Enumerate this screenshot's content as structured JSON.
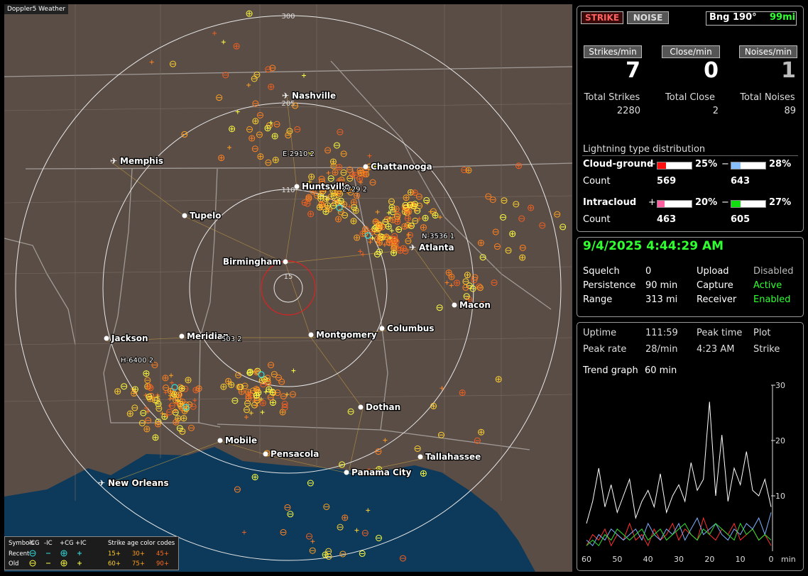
{
  "map": {
    "brand": "Doppler5 Weather",
    "ring_labels": [
      300,
      205,
      110,
      15
    ],
    "cities": [
      "Nashville",
      "Memphis",
      "Chattanooga",
      "Huntsville",
      "Tupelo",
      "Birmingham",
      "Atlanta",
      "Macon",
      "Jackson",
      "Meridian",
      "Montgomery",
      "Columbus",
      "Dothan",
      "Mobile",
      "Pensacola",
      "Panama City",
      "Tallahassee",
      "New Orleans"
    ],
    "strike_tags": [
      "E-2910 2",
      "2729 2",
      "N-3536 1",
      "H-6400 2",
      "503 2"
    ]
  },
  "legend": {
    "symbols": "Symbols",
    "headers": [
      "-CG",
      "-IC",
      "+CG",
      "+IC"
    ],
    "age_title": "Strike age color codes",
    "recent": "Recent",
    "old": "Old",
    "recent_ages": [
      "15+",
      "30+",
      "45+"
    ],
    "old_ages": [
      "60+",
      "75+",
      "90+"
    ]
  },
  "panel": {
    "strike_button": "STRIKE",
    "noise_button": "NOISE",
    "bearing": "Bng 190°",
    "distance": "99mi",
    "rates": [
      {
        "label": "Strikes/min",
        "value": 7
      },
      {
        "label": "Close/min",
        "value": 0
      },
      {
        "label": "Noises/min",
        "value": 1
      }
    ],
    "totals": [
      {
        "label": "Total Strikes",
        "value": 2280
      },
      {
        "label": "Total Close",
        "value": 2
      },
      {
        "label": "Total Noises",
        "value": 89
      }
    ],
    "distribution_title": "Lightning type distribution",
    "cloud_ground": {
      "label": "Cloud-ground",
      "plus_sign": "+",
      "minus_sign": "−",
      "plus": {
        "value": 25,
        "label": "25%"
      },
      "minus": {
        "value": 28,
        "label": "28%"
      },
      "count_label": "Count",
      "plus_count": 569,
      "minus_count": 643
    },
    "intracloud": {
      "label": "Intracloud",
      "plus_sign": "+",
      "minus_sign": "−",
      "plus": {
        "value": 20,
        "label": "20%"
      },
      "minus": {
        "value": 27,
        "label": "27%"
      },
      "count_label": "Count",
      "plus_count": 463,
      "minus_count": 605
    },
    "datetime": "9/4/2025 4:44:29 AM",
    "status": [
      [
        "Squelch",
        "0",
        "Upload",
        "Disabled"
      ],
      [
        "Persistence",
        "90 min",
        "Capture",
        "Active"
      ],
      [
        "Range",
        "313 mi",
        "Receiver",
        "Enabled"
      ]
    ],
    "stats": [
      [
        "Uptime",
        "111:59",
        "Peak time",
        "Plot"
      ],
      [
        "Peak rate",
        "28/min",
        "4:23 AM",
        "Strike"
      ]
    ],
    "trend_label": "Trend graph",
    "trend_span": "60 min"
  },
  "trend_graph": {
    "type": "line",
    "x_unit": "min",
    "xlim": [
      60,
      0
    ],
    "ylim": [
      0,
      30
    ],
    "yticks": [
      10,
      20,
      30
    ],
    "xticks": [
      60,
      50,
      40,
      30,
      20,
      10,
      0
    ],
    "x": [
      60,
      58,
      56,
      54,
      52,
      50,
      48,
      46,
      44,
      42,
      40,
      38,
      36,
      34,
      32,
      30,
      28,
      26,
      24,
      22,
      20,
      18,
      16,
      14,
      12,
      10,
      8,
      6,
      4,
      2,
      0
    ],
    "series": [
      {
        "color": "#ffffff",
        "values": [
          5,
          9,
          15,
          8,
          12,
          7,
          10,
          13,
          6,
          9,
          11,
          8,
          14,
          7,
          10,
          12,
          9,
          16,
          11,
          13,
          27,
          10,
          21,
          9,
          15,
          12,
          18,
          11,
          10,
          13,
          8
        ]
      },
      {
        "color": "#ff3030",
        "values": [
          1,
          3,
          2,
          4,
          1,
          3,
          2,
          5,
          2,
          3,
          1,
          4,
          2,
          3,
          5,
          2,
          4,
          3,
          2,
          6,
          3,
          2,
          4,
          3,
          5,
          2,
          3,
          4,
          2,
          3,
          1
        ]
      },
      {
        "color": "#7fb0ff",
        "values": [
          2,
          1,
          3,
          2,
          4,
          3,
          2,
          3,
          4,
          2,
          5,
          3,
          2,
          4,
          3,
          5,
          2,
          4,
          6,
          3,
          4,
          5,
          3,
          2,
          4,
          3,
          5,
          4,
          6,
          3,
          7
        ]
      },
      {
        "color": "#30e030",
        "values": [
          1,
          2,
          1,
          3,
          2,
          4,
          3,
          2,
          3,
          4,
          2,
          3,
          4,
          2,
          3,
          4,
          5,
          3,
          2,
          4,
          3,
          5,
          4,
          3,
          2,
          5,
          3,
          4,
          2,
          3,
          2
        ]
      }
    ]
  }
}
